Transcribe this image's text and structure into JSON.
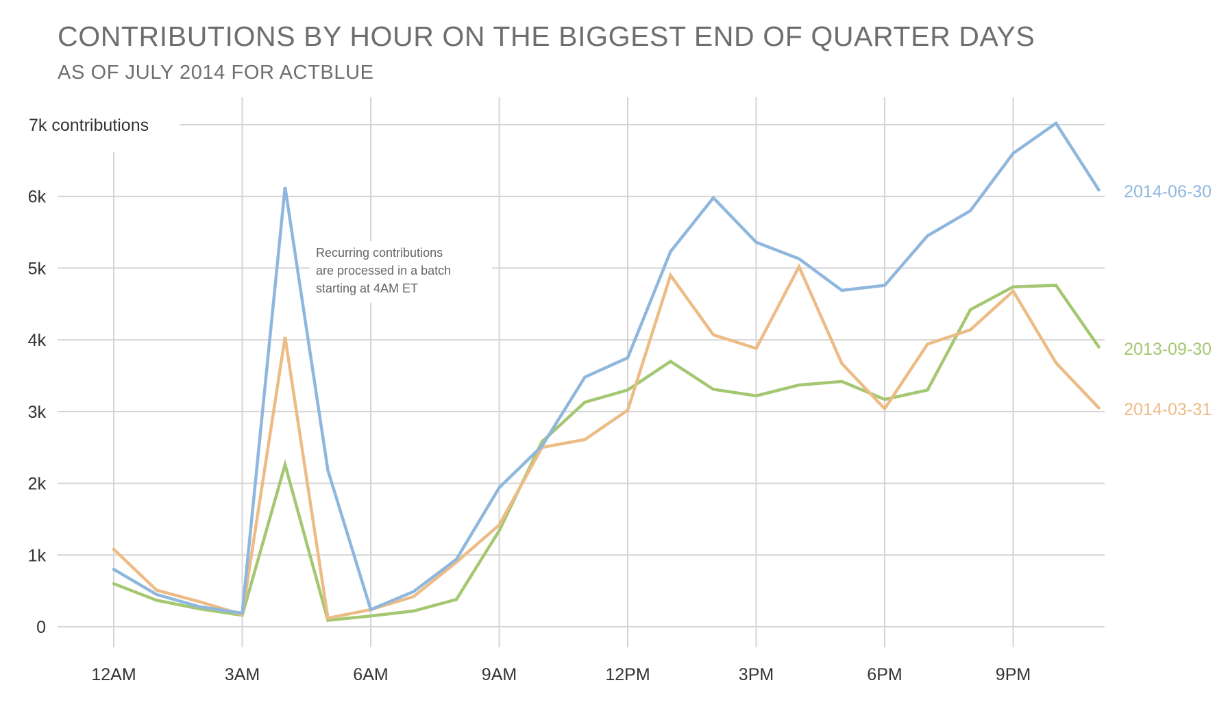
{
  "header": {
    "title": "CONTRIBUTIONS BY HOUR ON THE BIGGEST END OF QUARTER DAYS",
    "subtitle": "AS OF JULY 2014 FOR ACTBLUE"
  },
  "chart_data": {
    "type": "line",
    "title": "CONTRIBUTIONS BY HOUR ON THE BIGGEST END OF QUARTER DAYS",
    "subtitle": "AS OF JULY 2014 FOR ACTBLUE",
    "xlabel": "",
    "ylabel": "",
    "x": [
      0,
      1,
      2,
      3,
      4,
      5,
      6,
      7,
      8,
      9,
      10,
      11,
      12,
      13,
      14,
      15,
      16,
      17,
      18,
      19,
      20,
      21,
      22,
      23
    ],
    "x_ticks": [
      {
        "value": 0,
        "label": "12AM"
      },
      {
        "value": 3,
        "label": "3AM"
      },
      {
        "value": 6,
        "label": "6AM"
      },
      {
        "value": 9,
        "label": "9AM"
      },
      {
        "value": 12,
        "label": "12PM"
      },
      {
        "value": 15,
        "label": "3PM"
      },
      {
        "value": 18,
        "label": "6PM"
      },
      {
        "value": 21,
        "label": "9PM"
      }
    ],
    "y_ticks": [
      {
        "value": 0,
        "label": "0"
      },
      {
        "value": 1000,
        "label": "1k"
      },
      {
        "value": 2000,
        "label": "2k"
      },
      {
        "value": 3000,
        "label": "3k"
      },
      {
        "value": 4000,
        "label": "4k"
      },
      {
        "value": 5000,
        "label": "5k"
      },
      {
        "value": 6000,
        "label": "6k"
      },
      {
        "value": 7000,
        "label": "7k contributions"
      }
    ],
    "ylim": [
      0,
      7000
    ],
    "xlim": [
      0,
      23
    ],
    "grid": true,
    "legend": "inline at right end of each line",
    "series": [
      {
        "name": "2014-06-30",
        "color": "#8fb7dd",
        "values": [
          800,
          450,
          280,
          190,
          6130,
          2180,
          240,
          490,
          940,
          1940,
          2520,
          3480,
          3750,
          5230,
          5980,
          5360,
          5130,
          4690,
          4760,
          5450,
          5800,
          6600,
          7020,
          6090
        ]
      },
      {
        "name": "2013-09-30",
        "color": "#a4c772",
        "values": [
          600,
          370,
          250,
          160,
          2260,
          90,
          150,
          220,
          380,
          1340,
          2580,
          3130,
          3300,
          3700,
          3310,
          3220,
          3370,
          3420,
          3170,
          3300,
          4420,
          4740,
          4760,
          3900
        ]
      },
      {
        "name": "2014-03-31",
        "color": "#edbc86",
        "values": [
          1080,
          510,
          350,
          170,
          4040,
          120,
          240,
          420,
          900,
          1420,
          2500,
          2610,
          3020,
          4900,
          4070,
          3880,
          5020,
          3670,
          3040,
          3940,
          4140,
          4680,
          3680,
          3050
        ]
      }
    ],
    "annotations": [
      {
        "lines": [
          "Recurring contributions",
          "are processed in a batch",
          "starting at 4AM ET"
        ]
      }
    ]
  }
}
